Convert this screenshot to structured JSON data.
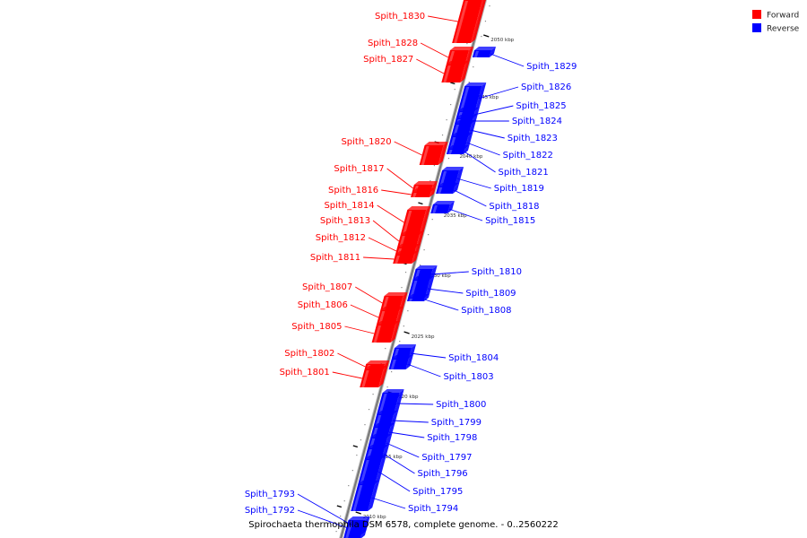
{
  "title": "Spirochaeta thermophila DSM 6578, complete genome. - 0..2560222",
  "legend": [
    {
      "label": "Forward",
      "color": "#ff0000"
    },
    {
      "label": "Reverse",
      "color": "#0000ff"
    }
  ],
  "scale_ticks": [
    "2050 kbp",
    "2045 kbp",
    "2040 kbp",
    "2035 kbp",
    "2030 kbp",
    "2025 kbp",
    "2020 kbp",
    "2015 kbp",
    "2010 kbp"
  ],
  "colors": {
    "forward": "#ff0000",
    "reverse": "#0000ff",
    "backbone": "#888888"
  },
  "forward_genes": [
    "Spith_1830",
    "Spith_1828",
    "Spith_1827",
    "Spith_1820",
    "Spith_1817",
    "Spith_1816",
    "Spith_1814",
    "Spith_1813",
    "Spith_1812",
    "Spith_1811",
    "Spith_1807",
    "Spith_1806",
    "Spith_1805",
    "Spith_1802",
    "Spith_1801"
  ],
  "reverse_genes": [
    "Spith_1829",
    "Spith_1826",
    "Spith_1825",
    "Spith_1824",
    "Spith_1823",
    "Spith_1822",
    "Spith_1821",
    "Spith_1819",
    "Spith_1818",
    "Spith_1815",
    "Spith_1810",
    "Spith_1809",
    "Spith_1808",
    "Spith_1804",
    "Spith_1803",
    "Spith_1800",
    "Spith_1799",
    "Spith_1798",
    "Spith_1797",
    "Spith_1796",
    "Spith_1795",
    "Spith_1794",
    "Spith_1793",
    "Spith_1792"
  ]
}
